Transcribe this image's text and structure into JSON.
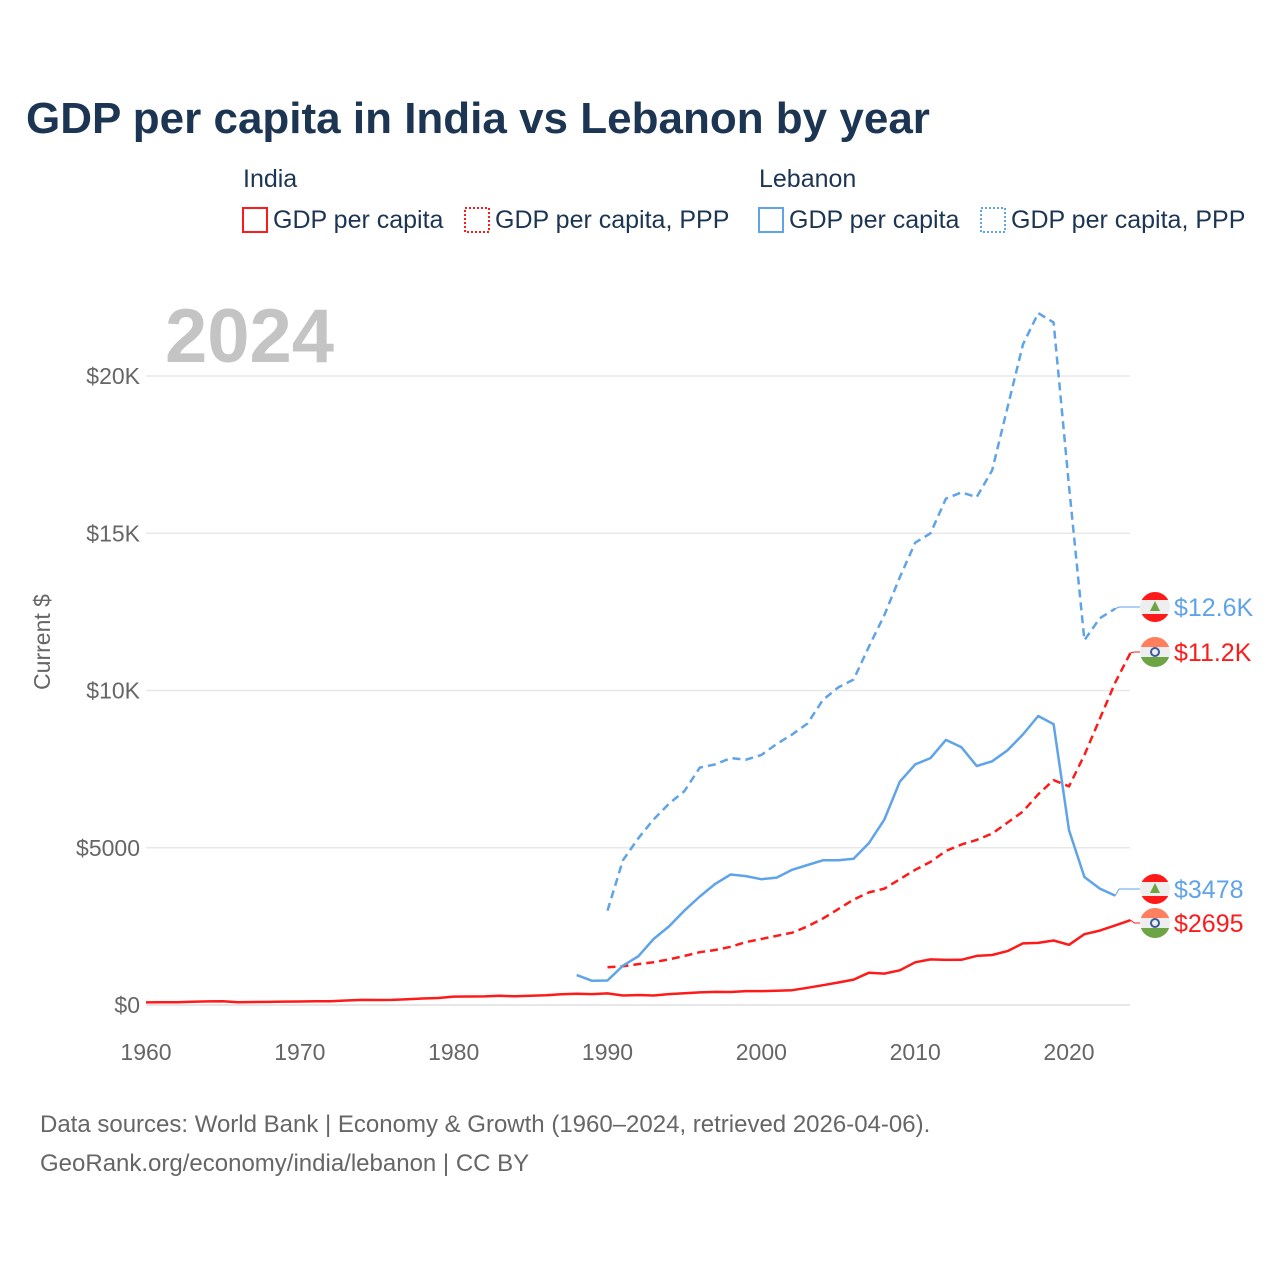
{
  "chart_data": {
    "type": "line",
    "title": "GDP per capita in India vs Lebanon by year",
    "ylabel": "Current $",
    "xlabel": "",
    "year_watermark": "2024",
    "xlim": [
      1960,
      2024
    ],
    "ylim": [
      0,
      22500
    ],
    "x_ticks": [
      1960,
      1970,
      1980,
      1990,
      2000,
      2010,
      2020
    ],
    "x_tick_labels": [
      "1960",
      "1970",
      "1980",
      "1990",
      "2000",
      "2010",
      "2020"
    ],
    "y_ticks": [
      0,
      5000,
      10000,
      15000,
      20000
    ],
    "y_tick_labels": [
      "$0",
      "$5000",
      "$10K",
      "$15K",
      "$20K"
    ],
    "grid": true,
    "legend_position": "top",
    "legend_groups": [
      {
        "name": "India",
        "items": [
          "GDP per capita",
          "GDP per capita, PPP"
        ]
      },
      {
        "name": "Lebanon",
        "items": [
          "GDP per capita",
          "GDP per capita, PPP"
        ]
      }
    ],
    "colors": {
      "India": "#ff1a1a",
      "Lebanon": "#5fa3e8"
    },
    "series": [
      {
        "name": "India GDP per capita",
        "country": "India",
        "style": "solid",
        "end_label": "$2695",
        "x_start": 1960,
        "values": [
          82,
          85,
          89,
          101,
          116,
          119,
          90,
          96,
          99,
          107,
          112,
          119,
          122,
          143,
          163,
          158,
          161,
          186,
          206,
          224,
          267,
          271,
          275,
          292,
          277,
          297,
          310,
          340,
          355,
          347,
          368,
          303,
          317,
          301,
          346,
          374,
          400,
          415,
          413,
          442,
          443,
          452,
          471,
          547,
          628,
          714,
          807,
          1028,
          999,
          1102,
          1358,
          1450,
          1434,
          1438,
          1560,
          1590,
          1714,
          1958,
          1974,
          2050,
          1913,
          2250,
          2367,
          2530,
          2695
        ]
      },
      {
        "name": "India GDP per capita, PPP",
        "country": "India",
        "style": "dashed",
        "end_label": "$11.2K",
        "x_start": 1990,
        "values": [
          1200,
          1230,
          1300,
          1360,
          1450,
          1560,
          1680,
          1750,
          1850,
          2000,
          2100,
          2200,
          2300,
          2500,
          2750,
          3050,
          3350,
          3580,
          3700,
          4000,
          4300,
          4550,
          4900,
          5100,
          5250,
          5450,
          5800,
          6150,
          6700,
          7150,
          6950,
          7950,
          9100,
          10250,
          11200
        ]
      },
      {
        "name": "Lebanon GDP per capita",
        "country": "Lebanon",
        "style": "solid",
        "end_label": "$3478",
        "x_start": 1988,
        "values": [
          950,
          770,
          780,
          1250,
          1550,
          2100,
          2500,
          3000,
          3450,
          3850,
          4150,
          4100,
          4000,
          4050,
          4300,
          4450,
          4600,
          4600,
          4650,
          5150,
          5900,
          7100,
          7650,
          7850,
          8430,
          8200,
          7600,
          7750,
          8100,
          8600,
          9190,
          8930,
          5560,
          4070,
          3700,
          3478
        ]
      },
      {
        "name": "Lebanon GDP per capita, PPP",
        "country": "Lebanon",
        "style": "dashed",
        "end_label": "$12.6K",
        "x_start": 1990,
        "values": [
          3000,
          4600,
          5300,
          5900,
          6400,
          6800,
          7550,
          7650,
          7850,
          7800,
          7950,
          8300,
          8600,
          8950,
          9700,
          10100,
          10350,
          11400,
          12400,
          13600,
          14700,
          15000,
          16100,
          16300,
          16150,
          17000,
          19000,
          21000,
          22000,
          21700,
          16500,
          11600,
          12300,
          12600
        ]
      }
    ]
  },
  "footer": {
    "line1": "Data sources: World Bank | Economy & Growth (1960–2024, retrieved 2026-04-06).",
    "line2": "GeoRank.org/economy/india/lebanon | CC BY"
  }
}
